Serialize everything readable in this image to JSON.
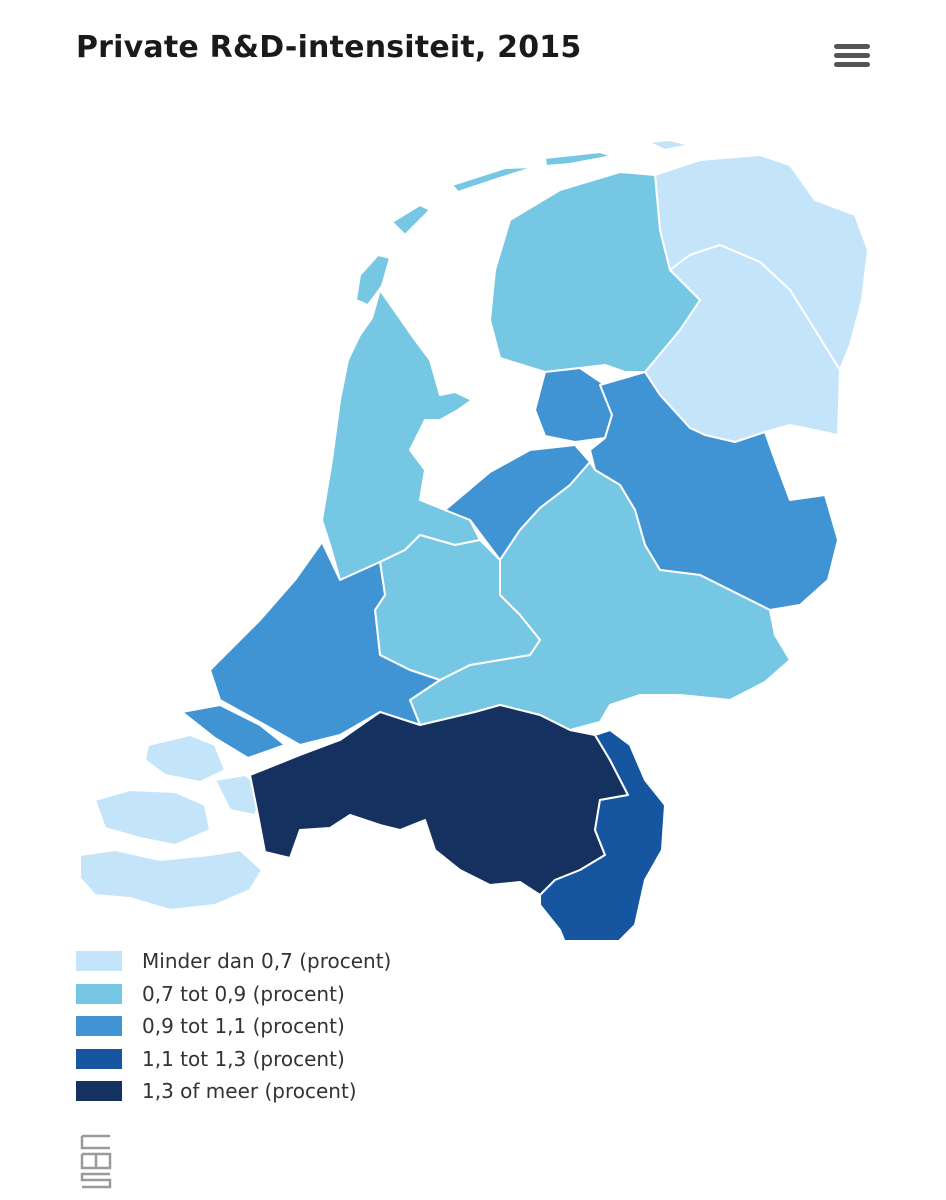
{
  "header": {
    "title": "Private R&D-intensiteit, 2015"
  },
  "menu": {
    "icon": "hamburger-menu-icon",
    "color": "#555555"
  },
  "palette": {
    "c1": "#c3e4f9",
    "c2": "#76c7e3",
    "c3": "#4094d4",
    "c4": "#1656a0",
    "c5": "#15315f"
  },
  "regions": [
    {
      "name": "Groningen",
      "class": "Minder dan 0,7 (procent)"
    },
    {
      "name": "Drenthe",
      "class": "Minder dan 0,7 (procent)"
    },
    {
      "name": "Zeeland",
      "class": "Minder dan 0,7 (procent)"
    },
    {
      "name": "Friesland",
      "class": "0,7 tot 0,9 (procent)"
    },
    {
      "name": "Noord-Holland",
      "class": "0,7 tot 0,9 (procent)"
    },
    {
      "name": "Utrecht",
      "class": "0,7 tot 0,9 (procent)"
    },
    {
      "name": "Gelderland",
      "class": "0,7 tot 0,9 (procent)"
    },
    {
      "name": "Flevoland",
      "class": "0,9 tot 1,1 (procent)"
    },
    {
      "name": "Overijssel",
      "class": "0,9 tot 1,1 (procent)"
    },
    {
      "name": "Zuid-Holland",
      "class": "0,9 tot 1,1 (procent)"
    },
    {
      "name": "Limburg",
      "class": "1,1 tot 1,3 (procent)"
    },
    {
      "name": "Noord-Brabant",
      "class": "1,3 of meer (procent)"
    }
  ],
  "legend": [
    {
      "label": "Minder dan 0,7 (procent)",
      "color": "#c3e4f9"
    },
    {
      "label": "0,7 tot 0,9 (procent)",
      "color": "#76c7e3"
    },
    {
      "label": "0,9 tot 1,1 (procent)",
      "color": "#4094d4"
    },
    {
      "label": "1,1 tot 1,3 (procent)",
      "color": "#1656a0"
    },
    {
      "label": "1,3 of meer (procent)",
      "color": "#15315f"
    }
  ],
  "logo": {
    "lettering": "cbs",
    "icon": "cbs-logo"
  }
}
